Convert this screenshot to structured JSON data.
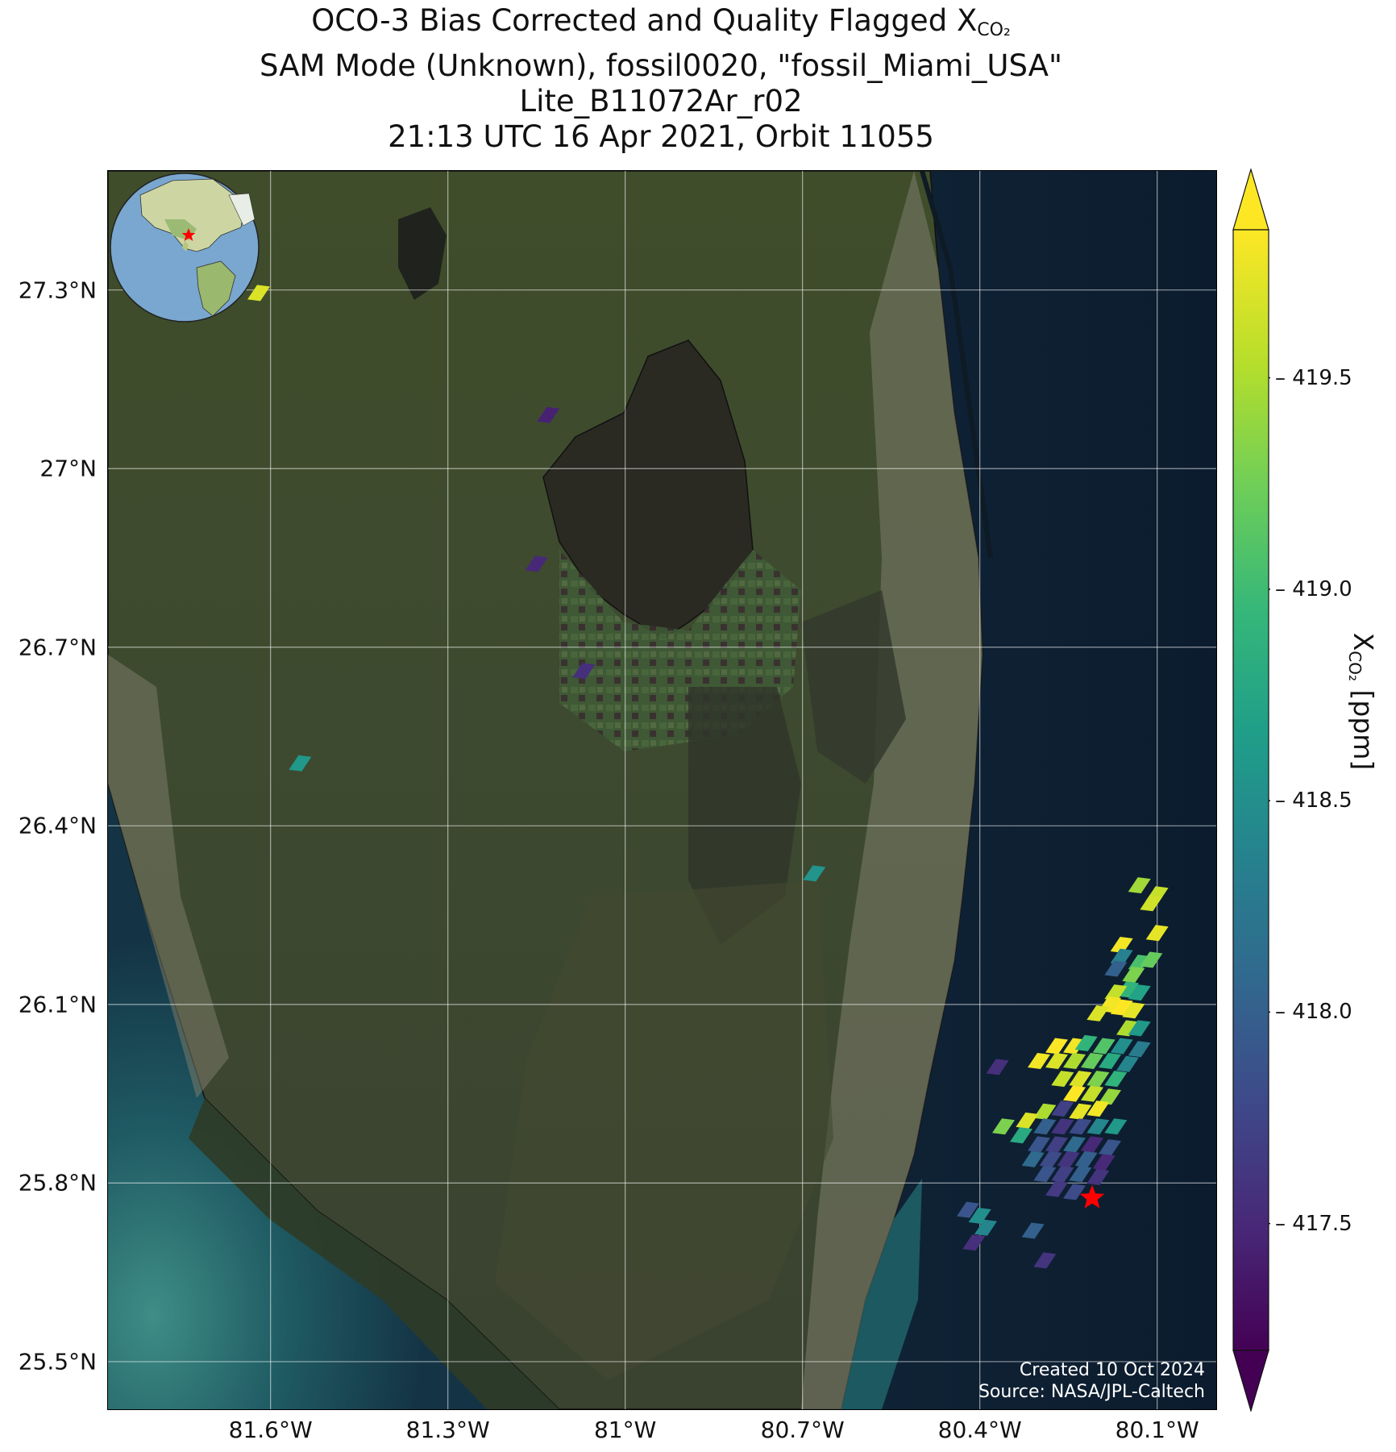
{
  "title": {
    "line1_prefix": "OCO-3 Bias Corrected and Quality Flagged X",
    "line1_sub": "CO₂",
    "line2": "SAM Mode (Unknown), fossil0020, \"fossil_Miami_USA\"",
    "line3": "Lite_B11072Ar_r02",
    "line4": "21:13 UTC 16 Apr 2021, Orbit 11055"
  },
  "map": {
    "lon_range": [
      -81.875,
      -80.0
    ],
    "lat_range": [
      25.42,
      27.5
    ],
    "lat_ticks": [
      {
        "value": 27.3,
        "label": "27.3°N"
      },
      {
        "value": 27.0,
        "label": "27°N"
      },
      {
        "value": 26.7,
        "label": "26.7°N"
      },
      {
        "value": 26.4,
        "label": "26.4°N"
      },
      {
        "value": 26.1,
        "label": "26.1°N"
      },
      {
        "value": 25.8,
        "label": "25.8°N"
      },
      {
        "value": 25.5,
        "label": "25.5°N"
      }
    ],
    "lon_ticks": [
      {
        "value": -81.6,
        "label": "81.6°W"
      },
      {
        "value": -81.3,
        "label": "81.3°W"
      },
      {
        "value": -81.0,
        "label": "81°W"
      },
      {
        "value": -80.7,
        "label": "80.7°W"
      },
      {
        "value": -80.4,
        "label": "80.4°W"
      },
      {
        "value": -80.1,
        "label": "80.1°W"
      }
    ],
    "gridlines": true,
    "target_marker": {
      "lon": -80.21,
      "lat": 25.775,
      "color": "#ff0000"
    },
    "credits": {
      "created": "Created 10 Oct 2024",
      "source": "Source: NASA/JPL-Caltech"
    }
  },
  "colorbar": {
    "colormap": "viridis",
    "range": [
      417.2,
      419.85
    ],
    "extend": "both",
    "ticks": [
      {
        "value": 419.5,
        "label": "419.5"
      },
      {
        "value": 419.0,
        "label": "419.0"
      },
      {
        "value": 418.5,
        "label": "418.5"
      },
      {
        "value": 418.0,
        "label": "418.0"
      },
      {
        "value": 417.5,
        "label": "417.5"
      }
    ],
    "label_prefix": "X",
    "label_sub": "CO₂",
    "label_suffix": " [ppm]"
  },
  "chart_data": {
    "type": "scatter",
    "xlabel": "",
    "ylabel": "",
    "xlim": [
      -81.875,
      -80.0
    ],
    "ylim": [
      25.42,
      27.5
    ],
    "series": [
      {
        "values": [
          {
            "lon": -81.62,
            "lat": 27.295,
            "xco2": 419.7
          },
          {
            "lon": -81.13,
            "lat": 27.09,
            "xco2": 417.45
          },
          {
            "lon": -81.15,
            "lat": 26.84,
            "xco2": 417.5
          },
          {
            "lon": -81.07,
            "lat": 26.66,
            "xco2": 417.55
          },
          {
            "lon": -81.55,
            "lat": 26.505,
            "xco2": 418.6
          },
          {
            "lon": -80.68,
            "lat": 26.32,
            "xco2": 418.55
          },
          {
            "lon": -80.13,
            "lat": 26.3,
            "xco2": 419.45
          },
          {
            "lon": -80.1,
            "lat": 26.285,
            "xco2": 419.6
          },
          {
            "lon": -80.11,
            "lat": 26.27,
            "xco2": 419.65
          },
          {
            "lon": -80.1,
            "lat": 26.22,
            "xco2": 419.75
          },
          {
            "lon": -80.16,
            "lat": 26.2,
            "xco2": 419.8
          },
          {
            "lon": -80.16,
            "lat": 26.18,
            "xco2": 418.35
          },
          {
            "lon": -80.13,
            "lat": 26.17,
            "xco2": 419.05
          },
          {
            "lon": -80.11,
            "lat": 26.175,
            "xco2": 419.2
          },
          {
            "lon": -80.17,
            "lat": 26.16,
            "xco2": 418.0
          },
          {
            "lon": -80.14,
            "lat": 26.15,
            "xco2": 419.3
          },
          {
            "lon": -80.15,
            "lat": 26.125,
            "xco2": 418.9
          },
          {
            "lon": -80.13,
            "lat": 26.12,
            "xco2": 418.7
          },
          {
            "lon": -80.17,
            "lat": 26.12,
            "xco2": 419.6
          },
          {
            "lon": -80.18,
            "lat": 26.1,
            "xco2": 419.8
          },
          {
            "lon": -80.16,
            "lat": 26.095,
            "xco2": 419.85
          },
          {
            "lon": -80.14,
            "lat": 26.09,
            "xco2": 419.75
          },
          {
            "lon": -80.2,
            "lat": 26.085,
            "xco2": 419.7
          },
          {
            "lon": -80.15,
            "lat": 26.06,
            "xco2": 419.5
          },
          {
            "lon": -80.13,
            "lat": 26.06,
            "xco2": 418.6
          },
          {
            "lon": -80.27,
            "lat": 26.03,
            "xco2": 419.85
          },
          {
            "lon": -80.24,
            "lat": 26.03,
            "xco2": 419.8
          },
          {
            "lon": -80.22,
            "lat": 26.035,
            "xco2": 418.9
          },
          {
            "lon": -80.19,
            "lat": 26.03,
            "xco2": 419.1
          },
          {
            "lon": -80.16,
            "lat": 26.03,
            "xco2": 418.5
          },
          {
            "lon": -80.13,
            "lat": 26.025,
            "xco2": 418.3
          },
          {
            "lon": -80.3,
            "lat": 26.005,
            "xco2": 419.8
          },
          {
            "lon": -80.27,
            "lat": 26.005,
            "xco2": 419.7
          },
          {
            "lon": -80.24,
            "lat": 26.005,
            "xco2": 419.5
          },
          {
            "lon": -80.21,
            "lat": 26.005,
            "xco2": 419.2
          },
          {
            "lon": -80.18,
            "lat": 26.005,
            "xco2": 418.8
          },
          {
            "lon": -80.15,
            "lat": 26.0,
            "xco2": 418.4
          },
          {
            "lon": -80.37,
            "lat": 25.995,
            "xco2": 417.55
          },
          {
            "lon": -80.26,
            "lat": 25.975,
            "xco2": 419.6
          },
          {
            "lon": -80.23,
            "lat": 25.975,
            "xco2": 419.7
          },
          {
            "lon": -80.2,
            "lat": 25.975,
            "xco2": 419.3
          },
          {
            "lon": -80.17,
            "lat": 25.975,
            "xco2": 418.9
          },
          {
            "lon": -80.24,
            "lat": 25.95,
            "xco2": 419.85
          },
          {
            "lon": -80.21,
            "lat": 25.95,
            "xco2": 419.6
          },
          {
            "lon": -80.18,
            "lat": 25.945,
            "xco2": 419.4
          },
          {
            "lon": -80.29,
            "lat": 25.92,
            "xco2": 419.5
          },
          {
            "lon": -80.26,
            "lat": 25.925,
            "xco2": 417.7
          },
          {
            "lon": -80.23,
            "lat": 25.92,
            "xco2": 419.75
          },
          {
            "lon": -80.2,
            "lat": 25.925,
            "xco2": 419.8
          },
          {
            "lon": -80.32,
            "lat": 25.905,
            "xco2": 419.7
          },
          {
            "lon": -80.29,
            "lat": 25.895,
            "xco2": 418.0
          },
          {
            "lon": -80.26,
            "lat": 25.895,
            "xco2": 417.6
          },
          {
            "lon": -80.23,
            "lat": 25.895,
            "xco2": 417.8
          },
          {
            "lon": -80.2,
            "lat": 25.895,
            "xco2": 418.4
          },
          {
            "lon": -80.17,
            "lat": 25.895,
            "xco2": 418.6
          },
          {
            "lon": -80.36,
            "lat": 25.895,
            "xco2": 419.3
          },
          {
            "lon": -80.33,
            "lat": 25.88,
            "xco2": 418.8
          },
          {
            "lon": -80.3,
            "lat": 25.865,
            "xco2": 417.9
          },
          {
            "lon": -80.27,
            "lat": 25.865,
            "xco2": 417.7
          },
          {
            "lon": -80.24,
            "lat": 25.865,
            "xco2": 418.1
          },
          {
            "lon": -80.21,
            "lat": 25.865,
            "xco2": 417.5
          },
          {
            "lon": -80.18,
            "lat": 25.86,
            "xco2": 417.9
          },
          {
            "lon": -80.31,
            "lat": 25.84,
            "xco2": 418.1
          },
          {
            "lon": -80.28,
            "lat": 25.84,
            "xco2": 417.8
          },
          {
            "lon": -80.25,
            "lat": 25.84,
            "xco2": 417.6
          },
          {
            "lon": -80.22,
            "lat": 25.84,
            "xco2": 418.0
          },
          {
            "lon": -80.19,
            "lat": 25.835,
            "xco2": 417.5
          },
          {
            "lon": -80.29,
            "lat": 25.815,
            "xco2": 417.9
          },
          {
            "lon": -80.26,
            "lat": 25.815,
            "xco2": 417.7
          },
          {
            "lon": -80.23,
            "lat": 25.815,
            "xco2": 418.0
          },
          {
            "lon": -80.2,
            "lat": 25.81,
            "xco2": 417.6
          },
          {
            "lon": -80.27,
            "lat": 25.79,
            "xco2": 417.65
          },
          {
            "lon": -80.24,
            "lat": 25.785,
            "xco2": 417.8
          },
          {
            "lon": -80.42,
            "lat": 25.755,
            "xco2": 417.9
          },
          {
            "lon": -80.4,
            "lat": 25.745,
            "xco2": 418.5
          },
          {
            "lon": -80.39,
            "lat": 25.725,
            "xco2": 418.4
          },
          {
            "lon": -80.41,
            "lat": 25.7,
            "xco2": 417.55
          },
          {
            "lon": -80.31,
            "lat": 25.72,
            "xco2": 418.0
          },
          {
            "lon": -80.29,
            "lat": 25.67,
            "xco2": 417.6
          }
        ]
      }
    ]
  }
}
